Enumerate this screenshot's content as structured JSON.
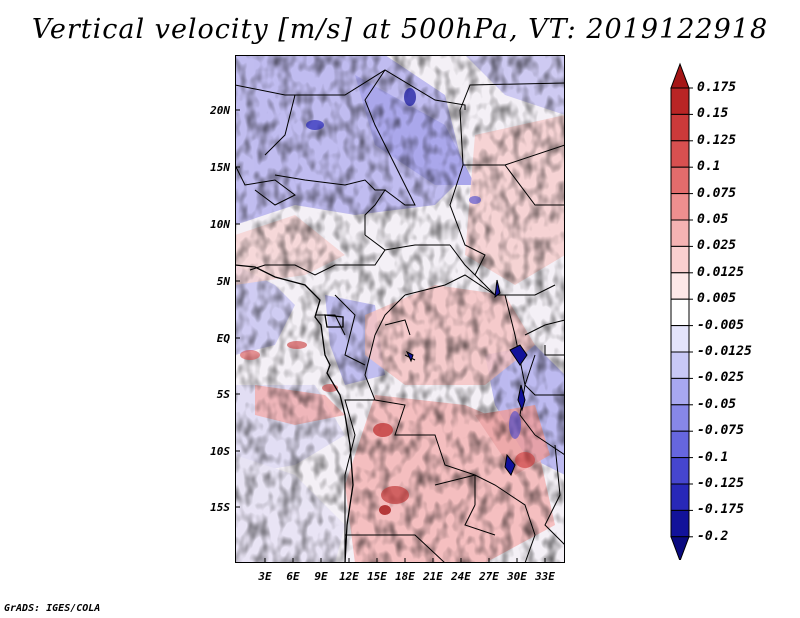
{
  "title": "Vertical velocity [m/s] at 500hPa, VT: 2019122918",
  "credit": "GrADS: IGES/COLA",
  "map": {
    "variable": "Vertical velocity",
    "units": "m/s",
    "level": "500hPa",
    "valid_time": "2019122918",
    "lat_range": [
      -20,
      24.5
    ],
    "lon_range": [
      0,
      35
    ],
    "lat_ticks": [
      "20N",
      "15N",
      "10N",
      "5N",
      "EQ",
      "5S",
      "10S",
      "15S"
    ],
    "lon_ticks": [
      "3E",
      "6E",
      "9E",
      "12E",
      "15E",
      "18E",
      "21E",
      "24E",
      "27E",
      "30E",
      "33E"
    ]
  },
  "colorbar": {
    "labels": [
      "0.175",
      "0.15",
      "0.125",
      "0.1",
      "0.075",
      "0.05",
      "0.025",
      "0.0125",
      "0.005",
      "-0.005",
      "-0.0125",
      "-0.025",
      "-0.05",
      "-0.075",
      "-0.1",
      "-0.125",
      "-0.175",
      "-0.2"
    ],
    "colors": [
      "#a51616",
      "#b92525",
      "#cb3a3a",
      "#d85050",
      "#e36c6c",
      "#ee8f8f",
      "#f5b3b3",
      "#fad0d0",
      "#fde8e8",
      "#ffffff",
      "#e4e4fb",
      "#c8c8f6",
      "#a8a8f0",
      "#8787e8",
      "#6666de",
      "#4646cf",
      "#2828b8",
      "#12129a",
      "#0a0a80"
    ]
  }
}
